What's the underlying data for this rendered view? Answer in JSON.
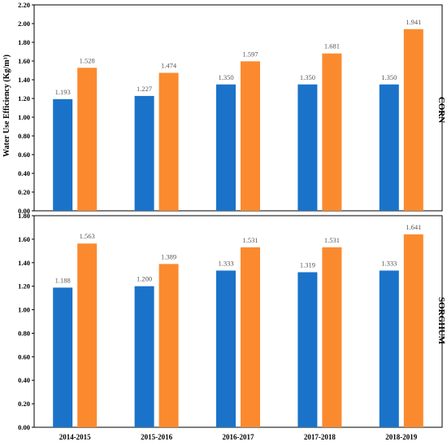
{
  "chart_data": [
    {
      "type": "bar",
      "panel_label": "CORN",
      "ylabel": "Water Use Efficiency  (Kg/m³)",
      "ylim": [
        0,
        2.2
      ],
      "yticks": [
        "0.00",
        "0.20",
        "0.40",
        "0.60",
        "0.80",
        "1.00",
        "1.20",
        "1.40",
        "1.60",
        "1.80",
        "2.00",
        "2.20"
      ],
      "grid": false,
      "categories": [
        "2014-2015",
        "2015-2016",
        "2016-2017",
        "2017-2018",
        "2018-2019"
      ],
      "series": [
        {
          "color": "#1a73c9",
          "values": [
            1.193,
            1.227,
            1.35,
            1.35,
            1.35
          ],
          "labels": [
            "1.193",
            "1.227",
            "1.350",
            "1.350",
            "1.350"
          ]
        },
        {
          "color": "#fb8a2e",
          "values": [
            1.528,
            1.474,
            1.597,
            1.681,
            1.941
          ],
          "labels": [
            "1.528",
            "1.474",
            "1.597",
            "1.681",
            "1.941"
          ]
        }
      ]
    },
    {
      "type": "bar",
      "panel_label": "SORGHUM",
      "ylim": [
        0,
        1.8
      ],
      "yticks": [
        "0.00",
        "0.20",
        "0.40",
        "0.60",
        "0.80",
        "1.00",
        "1.20",
        "1.40",
        "1.60",
        "1.80"
      ],
      "grid": false,
      "xlabels_shown": true,
      "categories": [
        "2014-2015",
        "2015-2016",
        "2016-2017",
        "2017-2018",
        "2018-2019"
      ],
      "series": [
        {
          "color": "#1a73c9",
          "values": [
            1.188,
            1.2,
            1.333,
            1.319,
            1.333
          ],
          "labels": [
            "1.188",
            "1.200",
            "1.333",
            "1.319",
            "1.333"
          ]
        },
        {
          "color": "#fb8a2e",
          "values": [
            1.563,
            1.389,
            1.531,
            1.531,
            1.641
          ],
          "labels": [
            "1.563",
            "1.389",
            "1.531",
            "1.531",
            "1.641"
          ]
        }
      ]
    }
  ]
}
